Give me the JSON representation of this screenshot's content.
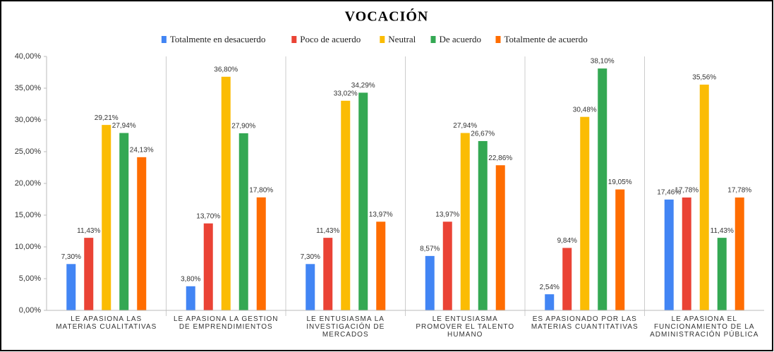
{
  "chart_data": {
    "type": "bar",
    "title": "VOCACIÓN",
    "categories": [
      "LE APASIONA LAS MATERIAS CUALITATIVAS",
      "LE APASIONA LA GESTION DE EMPRENDIMIENTOS",
      "LE ENTUSIASMA LA INVESTIGACIÓN DE MERCADOS",
      "LE ENTUSIASMA PROMOVER EL TALENTO HUMANO",
      "ES APASIONADO POR LAS MATERIAS CUANTITATIVAS",
      "LE APASIONA EL FUNCIONAMIENTO DE LA ADMINISTRACIÓN PÚBLICA"
    ],
    "series": [
      {
        "name": "Totalmente en desacuerdo",
        "color": "#4285f4",
        "values": [
          7.3,
          3.8,
          7.3,
          8.57,
          2.54,
          17.46
        ],
        "value_labels": [
          "7,30%",
          "3,80%",
          "7,30%",
          "8,57%",
          "2,54%",
          "17,46%"
        ]
      },
      {
        "name": "Poco de acuerdo",
        "color": "#ea4335",
        "values": [
          11.43,
          13.7,
          11.43,
          13.97,
          9.84,
          17.78
        ],
        "value_labels": [
          "11,43%",
          "13,70%",
          "11,43%",
          "13,97%",
          "9,84%",
          "17,78%"
        ]
      },
      {
        "name": "Neutral",
        "color": "#fbbc04",
        "values": [
          29.21,
          36.8,
          33.02,
          27.94,
          30.48,
          35.56
        ],
        "value_labels": [
          "29,21%",
          "36,80%",
          "33,02%",
          "27,94%",
          "30,48%",
          "35,56%"
        ]
      },
      {
        "name": "De acuerdo",
        "color": "#34a853",
        "values": [
          27.94,
          27.9,
          34.29,
          26.67,
          38.1,
          11.43
        ],
        "value_labels": [
          "27,94%",
          "27,90%",
          "34,29%",
          "26,67%",
          "38,10%",
          "11,43%"
        ]
      },
      {
        "name": "Totalmente de acuerdo",
        "color": "#ff6d01",
        "values": [
          24.13,
          17.8,
          13.97,
          22.86,
          19.05,
          17.78
        ],
        "value_labels": [
          "24,13%",
          "17,80%",
          "13,97%",
          "22,86%",
          "19,05%",
          "17,78%"
        ]
      }
    ],
    "ylim": [
      0,
      40
    ],
    "yticks": [
      {
        "value": 0,
        "label": "0,00%"
      },
      {
        "value": 5,
        "label": "5,00%"
      },
      {
        "value": 10,
        "label": "10,00%"
      },
      {
        "value": 15,
        "label": "15,00%"
      },
      {
        "value": 20,
        "label": "20,00%"
      },
      {
        "value": 25,
        "label": "25,00%"
      },
      {
        "value": 30,
        "label": "30,00%"
      },
      {
        "value": 35,
        "label": "35,00%"
      },
      {
        "value": 40,
        "label": "40,00%"
      }
    ],
    "legend": "top",
    "grid": false
  }
}
